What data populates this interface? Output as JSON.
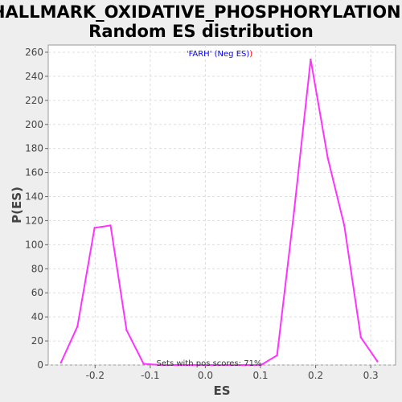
{
  "chart_data": {
    "type": "line",
    "title_lines": [
      "HALLMARK_OXIDATIVE_PHOSPHORYLATION:",
      "Random ES distribution"
    ],
    "xlabel": "ES",
    "ylabel": "P(ES)",
    "xlim": [
      -0.285,
      0.345
    ],
    "ylim": [
      0,
      266
    ],
    "x_ticks": [
      -0.2,
      -0.1,
      0.0,
      0.1,
      0.2,
      0.3
    ],
    "x_tick_labels": [
      "-0.2",
      "-0.1",
      "0.0",
      "0.1",
      "0.2",
      "0.3"
    ],
    "y_ticks": [
      0,
      20,
      40,
      60,
      80,
      100,
      120,
      140,
      160,
      180,
      200,
      220,
      240,
      260
    ],
    "grid": true,
    "series": [
      {
        "color": "#ff33ff",
        "x": [
          -0.262,
          -0.232,
          -0.201,
          -0.172,
          -0.143,
          -0.112,
          -0.081,
          -0.05,
          -0.019,
          0.011,
          0.041,
          0.071,
          0.101,
          0.13,
          0.161,
          0.191,
          0.222,
          0.252,
          0.282,
          0.312
        ],
        "y": [
          2,
          32,
          114,
          116,
          29,
          1,
          0,
          0,
          0,
          0,
          0,
          0,
          0,
          8,
          128,
          254,
          172,
          116,
          23,
          3
        ]
      }
    ],
    "annotations": {
      "gene_prefix": "'",
      "gene": "FARH",
      "gene_suffix": "' (Neg ES)",
      "gene_close": ")",
      "footer": "Sets with pos scores: 71%"
    }
  },
  "colors": {
    "background": "#eeeeee",
    "plot_background": "#ffffff",
    "line": "#ff33ff",
    "annotation_red": "#ff0000",
    "annotation_blue": "#0000ff"
  }
}
